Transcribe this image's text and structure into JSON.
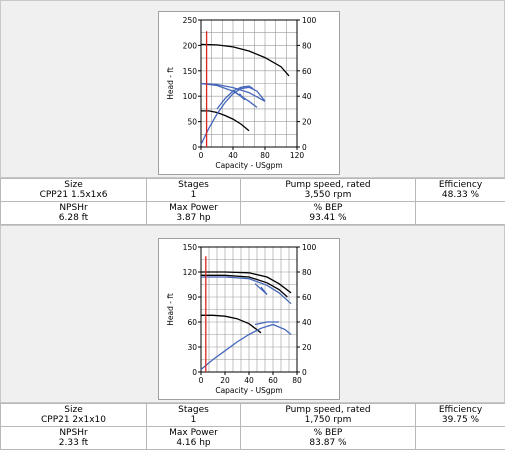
{
  "pumps": [
    {
      "size_label": "Size",
      "size": "CPP21 1.5x1x6",
      "stages_label": "Stages",
      "stages": "1",
      "speed_label": "Pump speed, rated",
      "speed": "3,550 rpm",
      "eff_label": "Efficiency",
      "efficiency": "48.33 %",
      "npshr_label": "NPSHr",
      "npshr": "6.28 ft",
      "power_label": "Max Power",
      "power": "3.87 hp",
      "bep_label": "% BEP",
      "bep": "93.41 %"
    },
    {
      "size_label": "Size",
      "size": "CPP21 2x1x10",
      "stages_label": "Stages",
      "stages": "1",
      "speed_label": "Pump speed, rated",
      "speed": "1,750 rpm",
      "eff_label": "Efficiency",
      "efficiency": "39.75 %",
      "npshr_label": "NPSHr",
      "npshr": "2.33 ft",
      "power_label": "Max Power",
      "power": "4.16 hp",
      "bep_label": "% BEP",
      "bep": "83.87 %"
    }
  ],
  "chart_data": [
    {
      "type": "line",
      "xlabel": "Capacity - USgpm",
      "ylabel": "Head - ft",
      "xlim": [
        0,
        120
      ],
      "ylim": [
        0,
        250
      ],
      "y2lim": [
        0,
        100
      ],
      "xticks": [
        0,
        40,
        80,
        120
      ],
      "yticks": [
        0,
        50,
        100,
        150,
        200,
        250
      ],
      "y2ticks": [
        0,
        20,
        40,
        60,
        80,
        100
      ],
      "grid": true,
      "colors": {
        "head": "#000000",
        "efficiency": "#4466bb",
        "operating": "#dd2222"
      },
      "series": [
        {
          "axis": "left",
          "color": "#000000",
          "points": [
            [
              0,
              202
            ],
            [
              20,
              201
            ],
            [
              40,
              197
            ],
            [
              60,
              189
            ],
            [
              80,
              176
            ],
            [
              100,
              158
            ],
            [
              110,
              140
            ]
          ]
        },
        {
          "axis": "left",
          "color": "#000000",
          "points": [
            [
              0,
              71
            ],
            [
              10,
              71
            ],
            [
              20,
              68
            ],
            [
              30,
              62
            ],
            [
              40,
              55
            ],
            [
              50,
              45
            ],
            [
              60,
              32
            ]
          ]
        },
        {
          "axis": "left",
          "color": "#4466bb",
          "points": [
            [
              0,
              125
            ],
            [
              20,
              123
            ],
            [
              40,
              117
            ],
            [
              60,
              107
            ],
            [
              80,
              90
            ]
          ]
        },
        {
          "axis": "left",
          "color": "#4466bb",
          "points": [
            [
              0,
              125
            ],
            [
              20,
              121
            ],
            [
              40,
              110
            ],
            [
              50,
              100
            ],
            [
              60,
              90
            ],
            [
              70,
              78
            ]
          ]
        },
        {
          "axis": "right",
          "color": "#4466bb",
          "points": [
            [
              0,
              2
            ],
            [
              10,
              15
            ],
            [
              20,
              26
            ],
            [
              30,
              35
            ],
            [
              40,
              42
            ],
            [
              50,
              46
            ],
            [
              60,
              47
            ],
            [
              70,
              44
            ],
            [
              80,
              36
            ]
          ]
        },
        {
          "axis": "right",
          "color": "#4466bb",
          "points": [
            [
              20,
              30
            ],
            [
              30,
              38
            ],
            [
              40,
              44
            ],
            [
              50,
              47
            ],
            [
              60,
              48
            ],
            [
              65,
              46
            ]
          ]
        },
        {
          "axis": "left",
          "color": "#4466bb",
          "points": [
            [
              40,
              112
            ],
            [
              48,
              102
            ],
            [
              55,
              93
            ],
            [
              48,
              105
            ]
          ]
        },
        {
          "axis": "left",
          "color": "#dd2222",
          "points": [
            [
              7,
              0
            ],
            [
              7,
              228
            ]
          ]
        }
      ]
    },
    {
      "type": "line",
      "xlabel": "Capacity - USgpm",
      "ylabel": "Head - ft",
      "xlim": [
        0,
        80
      ],
      "ylim": [
        0,
        150
      ],
      "y2lim": [
        0,
        100
      ],
      "xticks": [
        0,
        20,
        40,
        60,
        80
      ],
      "yticks": [
        0,
        30,
        60,
        90,
        120,
        150
      ],
      "y2ticks": [
        0,
        20,
        40,
        60,
        80,
        100
      ],
      "grid": true,
      "colors": {
        "head": "#000000",
        "efficiency": "#4466bb",
        "operating": "#dd2222"
      },
      "series": [
        {
          "axis": "left",
          "color": "#000000",
          "points": [
            [
              0,
              120
            ],
            [
              20,
              120
            ],
            [
              40,
              119
            ],
            [
              55,
              114
            ],
            [
              65,
              106
            ],
            [
              75,
              95
            ]
          ]
        },
        {
          "axis": "left",
          "color": "#000000",
          "points": [
            [
              0,
              116
            ],
            [
              20,
              116
            ],
            [
              40,
              114
            ],
            [
              55,
              107
            ],
            [
              65,
              99
            ],
            [
              72,
              90
            ]
          ]
        },
        {
          "axis": "left",
          "color": "#000000",
          "points": [
            [
              0,
              68
            ],
            [
              10,
              68
            ],
            [
              20,
              67
            ],
            [
              30,
              64
            ],
            [
              40,
              58
            ],
            [
              50,
              47
            ]
          ]
        },
        {
          "axis": "left",
          "color": "#4466bb",
          "points": [
            [
              0,
              114
            ],
            [
              20,
              114
            ],
            [
              40,
              112
            ],
            [
              55,
              104
            ],
            [
              65,
              95
            ],
            [
              75,
              82
            ]
          ]
        },
        {
          "axis": "right",
          "color": "#4466bb",
          "points": [
            [
              0,
              2
            ],
            [
              10,
              10
            ],
            [
              20,
              17
            ],
            [
              30,
              24
            ],
            [
              40,
              30
            ],
            [
              50,
              35
            ],
            [
              60,
              38
            ],
            [
              70,
              34
            ],
            [
              75,
              30
            ]
          ]
        },
        {
          "axis": "right",
          "color": "#4466bb",
          "points": [
            [
              45,
              38
            ],
            [
              55,
              40
            ],
            [
              65,
              40
            ]
          ]
        },
        {
          "axis": "left",
          "color": "#4466bb",
          "points": [
            [
              45,
              106
            ],
            [
              52,
              97
            ],
            [
              55,
              93
            ],
            [
              50,
              102
            ]
          ]
        },
        {
          "axis": "left",
          "color": "#dd2222",
          "points": [
            [
              4,
              0
            ],
            [
              4,
              139
            ]
          ]
        }
      ]
    }
  ]
}
